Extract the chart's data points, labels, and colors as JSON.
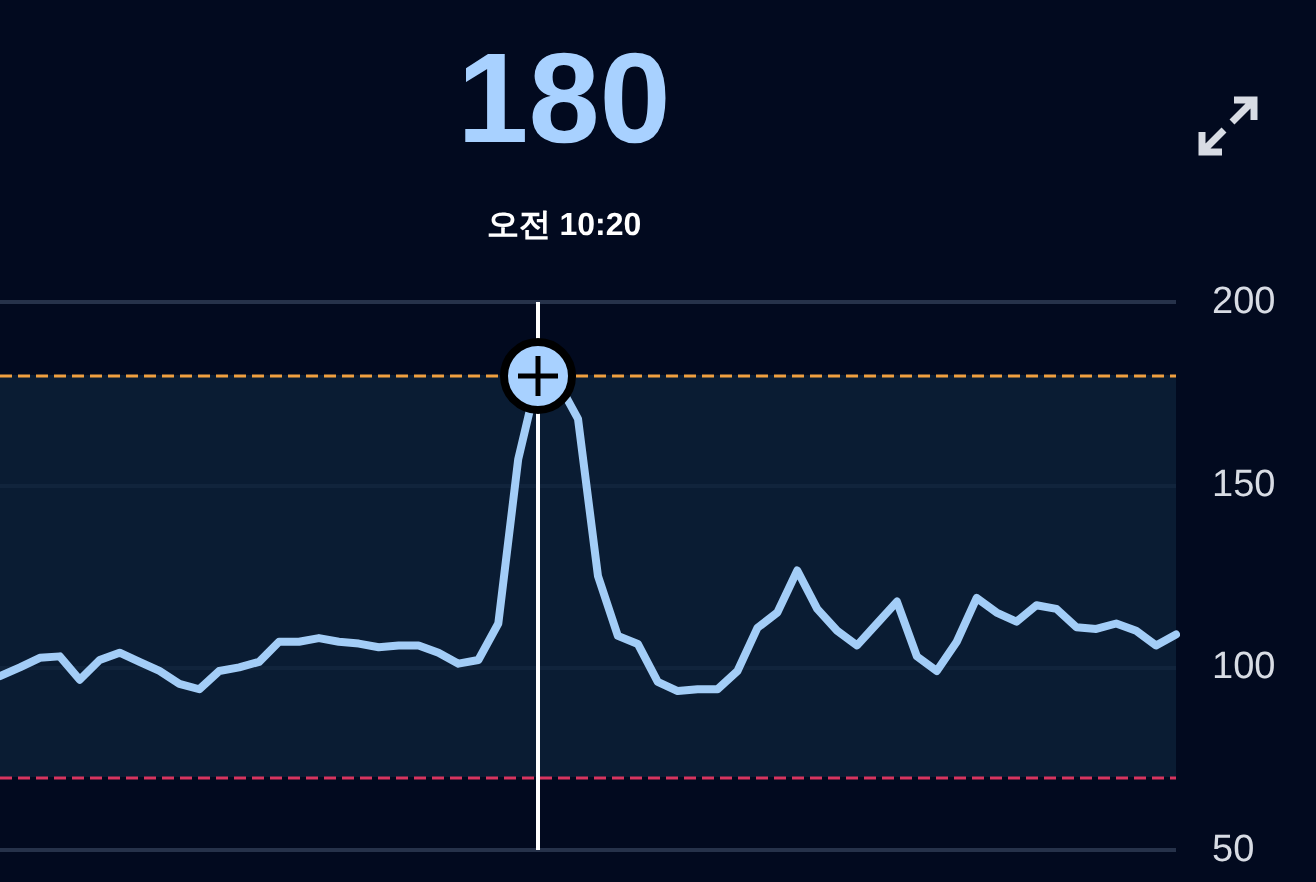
{
  "chart_data": {
    "type": "line",
    "title": "180",
    "subtitle": "오전 10:20",
    "categories": [
      null,
      null,
      null,
      null,
      null,
      null,
      null,
      null,
      null,
      null,
      null,
      null,
      null,
      null,
      null,
      null,
      null,
      null,
      null,
      null,
      null,
      null,
      null,
      null,
      null,
      null,
      null,
      null,
      null,
      null,
      null,
      null,
      null,
      null,
      null,
      null,
      null,
      null,
      null,
      null,
      null,
      null,
      null,
      null,
      null,
      null,
      null,
      null,
      null,
      null,
      null,
      null,
      null,
      null,
      null,
      null,
      null,
      null,
      null,
      null
    ],
    "series": [
      {
        "color": "#a3cdf7",
        "values": [
          97.6,
          100,
          102.6,
          103,
          96.6,
          102,
          104,
          101.5,
          99,
          95.5,
          94,
          99,
          100,
          101.5,
          107,
          107,
          108,
          107,
          106.5,
          105.5,
          106,
          106,
          104,
          101,
          102,
          112,
          157,
          180,
          178,
          168,
          125,
          108.6,
          106.4,
          96,
          93.5,
          94,
          94,
          99,
          110.8,
          115,
          126.5,
          116,
          110,
          106,
          112,
          118,
          103,
          99,
          107,
          119,
          115,
          112.5,
          117,
          116,
          111,
          110.5,
          112,
          110,
          106,
          109
        ]
      }
    ],
    "ylim": [
      50,
      200
    ],
    "yticks": [
      50,
      100,
      150,
      200
    ],
    "grid": "y",
    "marker": "none",
    "line_style": "solid",
    "tick_labels": "y",
    "ref_lines": [
      {
        "axis": "y",
        "value": 180,
        "color": "#f0a040",
        "line_style": "dashed"
      },
      {
        "axis": "y",
        "value": 70,
        "color": "#d8345f",
        "line_style": "dashed"
      }
    ],
    "bands": [
      {
        "axis": "y",
        "from": 70,
        "to": 180,
        "color": "#0c2038"
      }
    ]
  }
}
